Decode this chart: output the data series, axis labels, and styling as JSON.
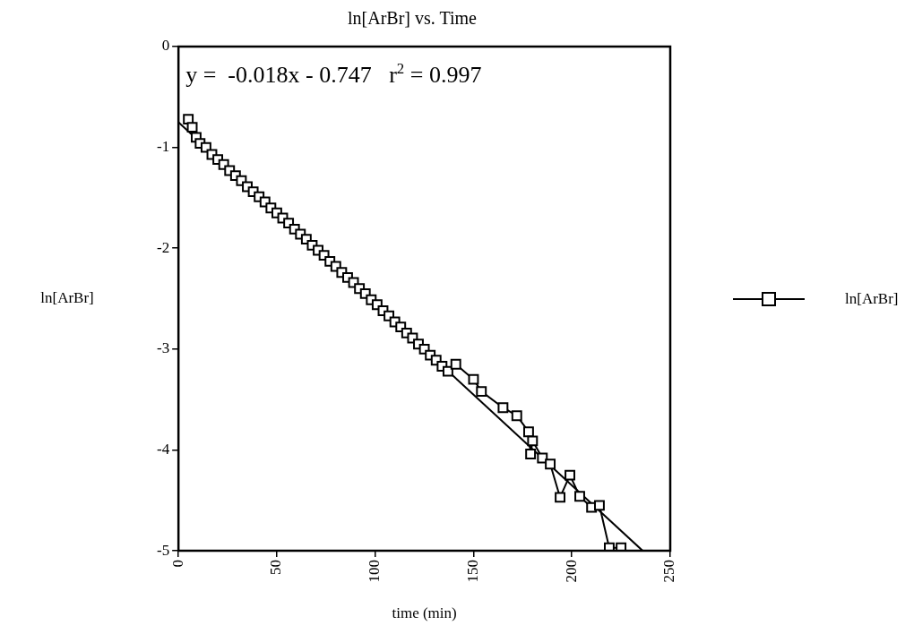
{
  "chart_data": {
    "type": "line",
    "title": "ln[ArBr] vs. Time",
    "xlabel": "time (min)",
    "ylabel": "ln[ArBr]",
    "annotations": [
      "y =  -0.018x - 0.747   r$^{2}$ = 0.997"
    ],
    "xlim": [
      0,
      250
    ],
    "xticks": [
      0,
      50,
      100,
      150,
      200,
      250
    ],
    "ylim": [
      -5,
      0
    ],
    "yticks": [
      -5,
      -4,
      -3,
      -2,
      -1,
      0
    ],
    "grid": false,
    "legend": "right",
    "marker": "square",
    "line_style": "solid",
    "series": [
      {
        "name": "ln[ArBr]",
        "color": "#000000",
        "x": [
          5,
          7,
          9,
          11,
          14,
          17,
          20,
          23,
          26,
          29,
          32,
          35,
          38,
          41,
          44,
          47,
          50,
          53,
          56,
          59,
          62,
          65,
          68,
          71,
          74,
          77,
          80,
          83,
          86,
          89,
          92,
          95,
          98,
          101,
          104,
          107,
          110,
          113,
          116,
          119,
          122,
          125,
          128,
          131,
          134,
          137,
          141,
          150,
          154,
          165,
          172,
          178,
          179,
          180,
          185,
          189,
          194,
          199,
          204,
          210,
          214,
          219,
          225
        ],
        "values": [
          -0.72,
          -0.8,
          -0.9,
          -0.96,
          -1.0,
          -1.07,
          -1.12,
          -1.17,
          -1.23,
          -1.28,
          -1.33,
          -1.39,
          -1.44,
          -1.49,
          -1.54,
          -1.6,
          -1.65,
          -1.7,
          -1.75,
          -1.81,
          -1.86,
          -1.91,
          -1.97,
          -2.02,
          -2.07,
          -2.13,
          -2.18,
          -2.24,
          -2.29,
          -2.34,
          -2.4,
          -2.45,
          -2.51,
          -2.56,
          -2.62,
          -2.67,
          -2.73,
          -2.78,
          -2.84,
          -2.89,
          -2.95,
          -3.0,
          -3.06,
          -3.11,
          -3.17,
          -3.22,
          -3.15,
          -3.3,
          -3.42,
          -3.58,
          -3.66,
          -3.82,
          -4.04,
          -3.91,
          -4.08,
          -4.14,
          -4.47,
          -4.25,
          -4.46,
          -4.57,
          -4.55,
          -4.97,
          -4.97
        ]
      },
      {
        "type": "line",
        "marker": "none",
        "color": "#000000",
        "x": [
          0,
          236
        ],
        "values": [
          -0.75,
          -5.0
        ]
      }
    ]
  }
}
